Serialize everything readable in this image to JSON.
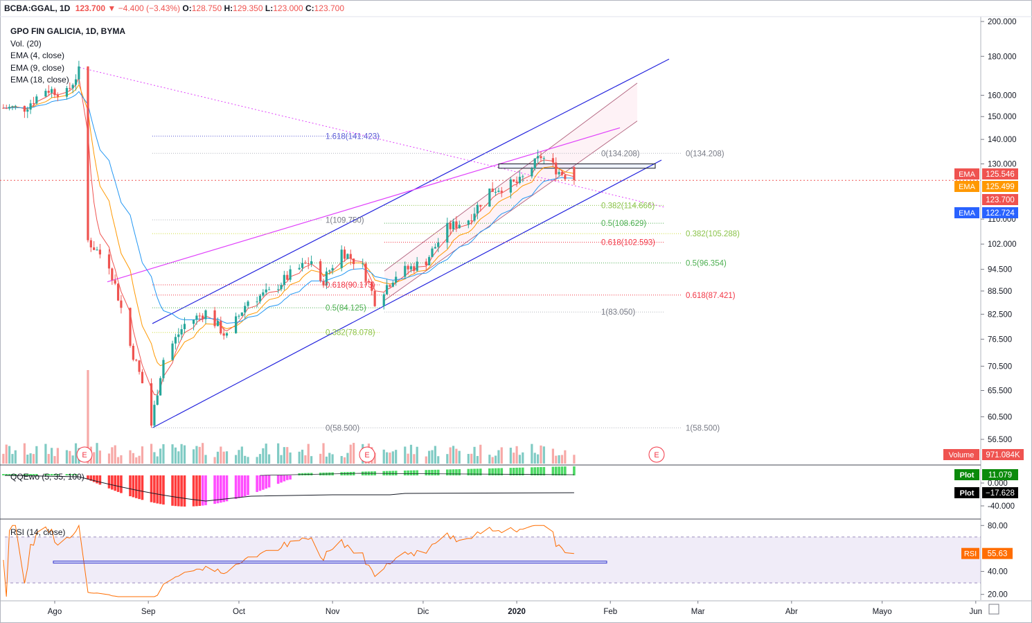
{
  "header": {
    "symbol": "BCBA:GGAL, 1D",
    "last": "123.700",
    "change": "−4.400 (−3.43%)",
    "o_label": "O:",
    "o": "128.750",
    "h_label": "H:",
    "h": "129.350",
    "l_label": "L:",
    "l": "123.000",
    "c_label": "C:",
    "c": "123.700"
  },
  "legend": {
    "title": "GPO FIN GALICIA, 1D, BYMA",
    "vol": "Vol. (20)",
    "ema4": "EMA (4, close)",
    "ema9": "EMA (9, close)",
    "ema18": "EMA (18, close)"
  },
  "price_axis": {
    "ticks": [
      "200.000",
      "180.000",
      "160.000",
      "150.000",
      "140.000",
      "130.000",
      "110.000",
      "102.000",
      "94.500",
      "88.500",
      "82.500",
      "76.500",
      "70.500",
      "65.500",
      "60.500",
      "56.500"
    ],
    "scale": "log"
  },
  "price_badges": [
    {
      "label": "EMA",
      "value": "125.546",
      "color": "#ef5350"
    },
    {
      "label": "EMA",
      "value": "125.499",
      "color": "#ff9800"
    },
    {
      "label": "",
      "value": "123.700",
      "color": "#ef5350"
    },
    {
      "label": "EMA",
      "value": "122.724",
      "color": "#2962ff"
    }
  ],
  "volume_badge": {
    "label": "Volume",
    "value": "971.084K",
    "color": "#ef5350"
  },
  "fib_labels": [
    {
      "text": "1.618(141.423)",
      "color": "#5b5bd6"
    },
    {
      "text": "0(134.208)",
      "color": "#787b86"
    },
    {
      "text": "0(134.208)",
      "color": "#787b86"
    },
    {
      "text": "1(109.750)",
      "color": "#787b86"
    },
    {
      "text": "0.382(114.666)",
      "color": "#8bc34a"
    },
    {
      "text": "0.5(108.629)",
      "color": "#4caf50"
    },
    {
      "text": "0.382(105.288)",
      "color": "#8bc34a"
    },
    {
      "text": "0.618(102.593)",
      "color": "#f23645"
    },
    {
      "text": "0.5(96.354)",
      "color": "#4caf50"
    },
    {
      "text": "0.618(90.173)",
      "color": "#f23645"
    },
    {
      "text": "0.618(87.421)",
      "color": "#f23645"
    },
    {
      "text": "0.5(84.125)",
      "color": "#4caf50"
    },
    {
      "text": "1(83.050)",
      "color": "#787b86"
    },
    {
      "text": "0.382(78.078)",
      "color": "#8bc34a"
    },
    {
      "text": "0(58.500)",
      "color": "#787b86"
    },
    {
      "text": "1(58.500)",
      "color": "#787b86"
    }
  ],
  "earnings_marker": "E",
  "oscillator": {
    "label": "QQEwo (5, 35, 100)",
    "ticks": [
      "0.000",
      "-40.000"
    ],
    "badges": [
      {
        "label": "Plot",
        "value": "11.079",
        "color": "#0b8a0b"
      },
      {
        "label": "Plot",
        "value": "−17.628",
        "color": "#000000"
      }
    ]
  },
  "rsi": {
    "label": "RSI (14, close)",
    "ticks": [
      "80.00",
      "40.00",
      "20.00"
    ],
    "badge_label": "RSI",
    "badge_value": "55.63",
    "badge_color": "#ff6d00"
  },
  "time_axis": {
    "labels": [
      "Ago",
      "Sep",
      "Oct",
      "Nov",
      "Dic",
      "2020",
      "Feb",
      "Mar",
      "Abr",
      "Mayo",
      "Jun"
    ]
  },
  "colors": {
    "up": "#26a69a",
    "down": "#ef5350",
    "ema4": "#ef5350",
    "ema9": "#ff9800",
    "ema18": "#2196f3",
    "channel": "#2222dd",
    "trend": "#e040fb",
    "grid": "#e0e3eb"
  },
  "chart_data": {
    "type": "candlestick",
    "symbol": "BCBA:GGAL",
    "interval": "1D",
    "last_close": 123.7,
    "ohlc_last": {
      "open": 128.75,
      "high": 129.35,
      "low": 123.0,
      "close": 123.7
    },
    "approx_closes": [
      {
        "date": "2019-07-22",
        "close": 154
      },
      {
        "date": "2019-07-29",
        "close": 163
      },
      {
        "date": "2019-08-05",
        "close": 161
      },
      {
        "date": "2019-08-09",
        "close": 172
      },
      {
        "date": "2019-08-12",
        "close": 103
      },
      {
        "date": "2019-08-19",
        "close": 96
      },
      {
        "date": "2019-08-26",
        "close": 75
      },
      {
        "date": "2019-08-30",
        "close": 67
      },
      {
        "date": "2019-09-02",
        "close": 59
      },
      {
        "date": "2019-09-06",
        "close": 72
      },
      {
        "date": "2019-09-13",
        "close": 80
      },
      {
        "date": "2019-09-20",
        "close": 83
      },
      {
        "date": "2019-09-27",
        "close": 77
      },
      {
        "date": "2019-10-04",
        "close": 86
      },
      {
        "date": "2019-10-11",
        "close": 88
      },
      {
        "date": "2019-10-18",
        "close": 93
      },
      {
        "date": "2019-10-25",
        "close": 97
      },
      {
        "date": "2019-10-28",
        "close": 90
      },
      {
        "date": "2019-11-04",
        "close": 100
      },
      {
        "date": "2019-11-11",
        "close": 95
      },
      {
        "date": "2019-11-15",
        "close": 86
      },
      {
        "date": "2019-11-22",
        "close": 93
      },
      {
        "date": "2019-12-02",
        "close": 97
      },
      {
        "date": "2019-12-09",
        "close": 107
      },
      {
        "date": "2019-12-16",
        "close": 110
      },
      {
        "date": "2019-12-23",
        "close": 120
      },
      {
        "date": "2020-01-02",
        "close": 123
      },
      {
        "date": "2020-01-09",
        "close": 133
      },
      {
        "date": "2020-01-15",
        "close": 127
      },
      {
        "date": "2020-01-20",
        "close": 123.7
      }
    ],
    "rsi_last": 55.63,
    "ema_values": {
      "ema4": 125.546,
      "ema9": 125.499,
      "ema18": 122.724
    },
    "volume_last": "971.084K"
  }
}
